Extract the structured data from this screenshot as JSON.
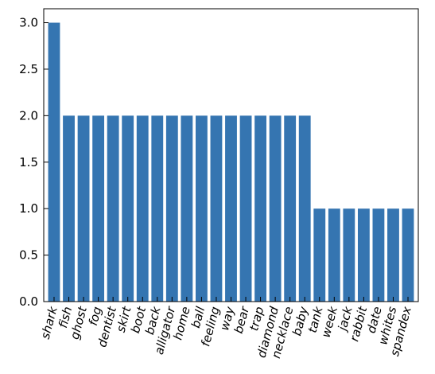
{
  "chart_data": {
    "type": "bar",
    "categories": [
      "shark",
      "fish",
      "ghost",
      "fog",
      "dentist",
      "skirt",
      "boot",
      "back",
      "alligator",
      "home",
      "ball",
      "feeling",
      "way",
      "bear",
      "trap",
      "diamond",
      "necklace",
      "baby",
      "tank",
      "week",
      "jack",
      "rabbit",
      "date",
      "whites",
      "spandex"
    ],
    "values": [
      3,
      2,
      2,
      2,
      2,
      2,
      2,
      2,
      2,
      2,
      2,
      2,
      2,
      2,
      2,
      2,
      2,
      2,
      1,
      1,
      1,
      1,
      1,
      1,
      1
    ],
    "title": "",
    "xlabel": "",
    "ylabel": "",
    "ylim": [
      0,
      3.15
    ],
    "yticks": [
      "0.0",
      "0.5",
      "1.0",
      "1.5",
      "2.0",
      "2.5",
      "3.0"
    ],
    "grid": false,
    "bar_color": "#3575b1",
    "x_tick_rotation_deg": 75
  }
}
